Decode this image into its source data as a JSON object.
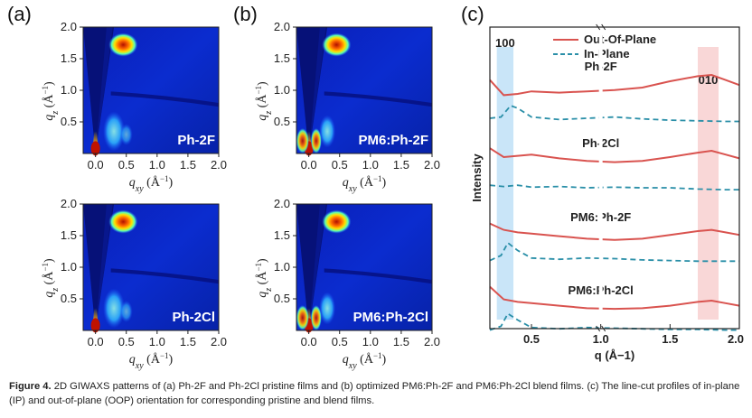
{
  "panels": {
    "a": "(a)",
    "b": "(b)",
    "c": "(c)"
  },
  "giwaxs": {
    "qz_ticks": [
      "0.5",
      "1.0",
      "1.5",
      "2.0"
    ],
    "qxy_ticks": [
      "0.0",
      "0.5",
      "1.0",
      "1.5",
      "2.0"
    ],
    "qz_label": "q",
    "qz_sub": "z",
    "qxy_label": "q",
    "qxy_sub": "xy",
    "unit": "(Å",
    "unit_exp": "−1",
    "unit_close": ")",
    "maps": [
      {
        "sample": "Ph-2F"
      },
      {
        "sample": "PM6:Ph-2F"
      },
      {
        "sample": "Ph-2Cl"
      },
      {
        "sample": "PM6:Ph-2Cl"
      }
    ]
  },
  "chart_data": {
    "type": "line",
    "xlabel": "q (Å−1)",
    "ylabel": "Intensity",
    "x_ticks": [
      "0.5",
      "1.0",
      "1.5",
      "2.0"
    ],
    "xlim": [
      0.2,
      2.0
    ],
    "legend": {
      "placement": "top",
      "entries": [
        {
          "name": "Out-Of-Plane",
          "style": "solid",
          "color": "#d9534f"
        },
        {
          "name": "In-Plane",
          "style": "dashed",
          "color": "#2a8fa8"
        }
      ]
    },
    "peak_labels": [
      "100",
      "010"
    ],
    "peak_bands": [
      {
        "label": "100",
        "from": 0.25,
        "to": 0.37,
        "color": "#bfe0f7"
      },
      {
        "label": "010",
        "from": 1.7,
        "to": 1.85,
        "color": "#f8d0d0"
      }
    ],
    "samples": [
      {
        "name": "Ph-2F",
        "oop": [
          [
            0.2,
            0.62
          ],
          [
            0.3,
            0.38
          ],
          [
            0.4,
            0.4
          ],
          [
            0.5,
            0.44
          ],
          [
            0.7,
            0.42
          ],
          [
            0.9,
            0.44
          ],
          [
            1.1,
            0.46
          ],
          [
            1.3,
            0.5
          ],
          [
            1.5,
            0.6
          ],
          [
            1.7,
            0.68
          ],
          [
            1.8,
            0.7
          ],
          [
            1.9,
            0.62
          ],
          [
            2.0,
            0.54
          ]
        ],
        "ip": [
          [
            0.2,
            0.1
          ],
          [
            0.28,
            0.12
          ],
          [
            0.35,
            0.3
          ],
          [
            0.4,
            0.26
          ],
          [
            0.5,
            0.12
          ],
          [
            0.7,
            0.08
          ],
          [
            0.9,
            0.1
          ],
          [
            1.1,
            0.12
          ],
          [
            1.3,
            0.09
          ],
          [
            1.5,
            0.07
          ],
          [
            1.7,
            0.06
          ],
          [
            1.9,
            0.05
          ],
          [
            2.0,
            0.05
          ]
        ]
      },
      {
        "name": "Ph-2Cl",
        "oop": [
          [
            0.2,
            0.62
          ],
          [
            0.3,
            0.48
          ],
          [
            0.4,
            0.5
          ],
          [
            0.5,
            0.52
          ],
          [
            0.7,
            0.46
          ],
          [
            0.9,
            0.42
          ],
          [
            1.1,
            0.4
          ],
          [
            1.3,
            0.42
          ],
          [
            1.5,
            0.48
          ],
          [
            1.7,
            0.55
          ],
          [
            1.8,
            0.58
          ],
          [
            1.9,
            0.52
          ],
          [
            2.0,
            0.46
          ]
        ],
        "ip": [
          [
            0.2,
            0.12
          ],
          [
            0.3,
            0.1
          ],
          [
            0.4,
            0.12
          ],
          [
            0.5,
            0.09
          ],
          [
            0.7,
            0.1
          ],
          [
            0.9,
            0.08
          ],
          [
            1.1,
            0.09
          ],
          [
            1.3,
            0.08
          ],
          [
            1.5,
            0.08
          ],
          [
            1.7,
            0.06
          ],
          [
            1.9,
            0.05
          ],
          [
            2.0,
            0.05
          ]
        ]
      },
      {
        "name": "PM6:Ph-2F",
        "oop": [
          [
            0.2,
            0.56
          ],
          [
            0.3,
            0.46
          ],
          [
            0.4,
            0.42
          ],
          [
            0.5,
            0.4
          ],
          [
            0.7,
            0.36
          ],
          [
            0.9,
            0.32
          ],
          [
            1.1,
            0.3
          ],
          [
            1.3,
            0.32
          ],
          [
            1.5,
            0.38
          ],
          [
            1.7,
            0.44
          ],
          [
            1.8,
            0.46
          ],
          [
            1.9,
            0.42
          ],
          [
            2.0,
            0.38
          ]
        ],
        "ip": [
          [
            0.2,
            0.06
          ],
          [
            0.28,
            0.14
          ],
          [
            0.33,
            0.34
          ],
          [
            0.4,
            0.22
          ],
          [
            0.5,
            0.1
          ],
          [
            0.7,
            0.08
          ],
          [
            0.9,
            0.1
          ],
          [
            1.1,
            0.09
          ],
          [
            1.3,
            0.07
          ],
          [
            1.5,
            0.06
          ],
          [
            1.7,
            0.05
          ],
          [
            1.9,
            0.05
          ],
          [
            2.0,
            0.05
          ]
        ]
      },
      {
        "name": "PM6:Ph-2Cl",
        "oop": [
          [
            0.2,
            0.64
          ],
          [
            0.3,
            0.44
          ],
          [
            0.4,
            0.4
          ],
          [
            0.5,
            0.38
          ],
          [
            0.7,
            0.34
          ],
          [
            0.9,
            0.3
          ],
          [
            1.1,
            0.29
          ],
          [
            1.3,
            0.3
          ],
          [
            1.5,
            0.34
          ],
          [
            1.7,
            0.4
          ],
          [
            1.8,
            0.42
          ],
          [
            1.9,
            0.38
          ],
          [
            2.0,
            0.34
          ]
        ],
        "ip": [
          [
            0.2,
            0.04
          ],
          [
            0.28,
            0.1
          ],
          [
            0.33,
            0.3
          ],
          [
            0.4,
            0.2
          ],
          [
            0.5,
            0.08
          ],
          [
            0.7,
            0.06
          ],
          [
            0.9,
            0.08
          ],
          [
            1.1,
            0.07
          ],
          [
            1.3,
            0.06
          ],
          [
            1.5,
            0.05
          ],
          [
            1.7,
            0.05
          ],
          [
            1.9,
            0.04
          ],
          [
            2.0,
            0.04
          ]
        ]
      }
    ]
  },
  "caption": {
    "label": "Figure 4.",
    "text": " 2D GIWAXS patterns of (a) Ph-2F and Ph-2Cl pristine films and (b) optimized PM6:Ph-2F and PM6:Ph-2Cl blend films. (c) The line-cut profiles of in-plane (IP) and out-of-plane (OOP) orientation for corresponding pristine and blend films."
  }
}
